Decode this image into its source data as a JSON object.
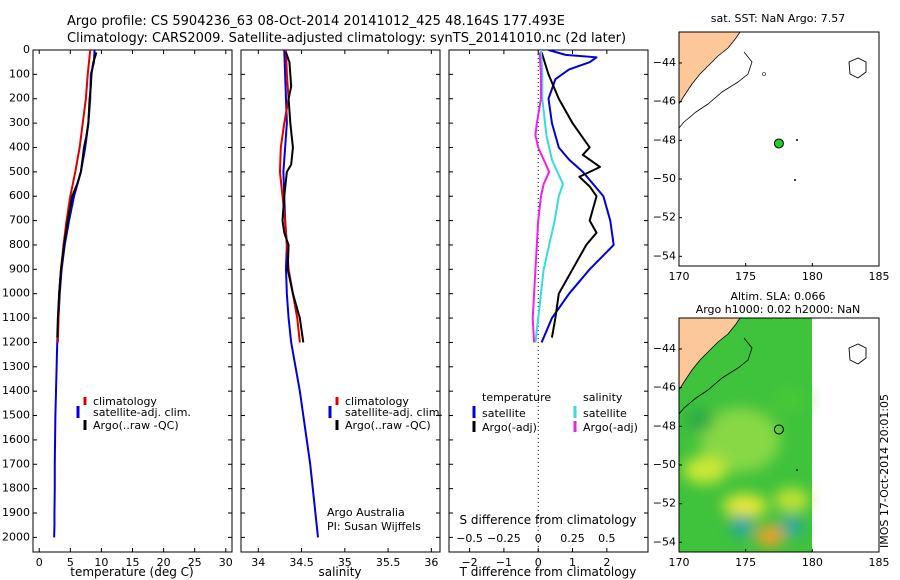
{
  "header": {
    "line1": "Argo profile: CS 5904236_63 08-Oct-2014 20141012_425 48.164S 177.493E",
    "line2": "Climatology: CARS2009. Satellite-adjusted climatology: synTS_20141010.nc (2d later)"
  },
  "credits": {
    "org": "Argo Australia",
    "pi": "PI: Susan Wijffels",
    "imos": "IMOS 17-Oct-2014 20:01:05"
  },
  "colors": {
    "climatology": "#dd0000",
    "satellite": "#0000dd",
    "argo": "#000000",
    "sat_salinity": "#33dddd",
    "argo_salinity": "#ee22ee",
    "land": "#fcc89a",
    "float_marker": "#22cc22"
  },
  "chart_data": [
    {
      "id": "temp",
      "type": "line",
      "xlabel": "temperature (deg C)",
      "ylim": [
        2060,
        0
      ],
      "xlim": [
        -1,
        31
      ],
      "xticks": [
        0,
        5,
        10,
        15,
        20,
        25,
        30
      ],
      "yticks": [
        0,
        100,
        200,
        300,
        400,
        500,
        600,
        700,
        800,
        900,
        1000,
        1100,
        1200,
        1300,
        1400,
        1500,
        1600,
        1700,
        1800,
        1900,
        2000
      ],
      "legend": {
        "position": "lower-center",
        "entries": [
          "climatology",
          "satellite-adj. clim.",
          "Argo(..raw -QC)"
        ]
      },
      "series": [
        {
          "name": "satellite-adj. clim.",
          "color": "satellite",
          "x": [
            8.9,
            8.8,
            8.3,
            8.2,
            7.9,
            7.4,
            6.7,
            5.6,
            4.8,
            4.1,
            3.6,
            3.3,
            3.1,
            2.9,
            2.8,
            2.7,
            2.6,
            2.55,
            2.5,
            2.5,
            2.45,
            2.45,
            2.4
          ],
          "y": [
            0,
            50,
            100,
            200,
            300,
            400,
            500,
            600,
            700,
            800,
            900,
            1000,
            1100,
            1200,
            1300,
            1400,
            1500,
            1600,
            1700,
            1800,
            1900,
            1950,
            2000
          ]
        },
        {
          "name": "climatology",
          "color": "climatology",
          "x": [
            8.2,
            8.0,
            7.8,
            7.5,
            7.0,
            6.5,
            5.8,
            5.0,
            4.4,
            3.9,
            3.5,
            3.2,
            3.0
          ],
          "y": [
            0,
            50,
            100,
            200,
            300,
            400,
            500,
            600,
            700,
            800,
            900,
            1000,
            1200
          ]
        },
        {
          "name": "Argo(..raw -QC)",
          "color": "argo",
          "x": [
            9.2,
            8.7,
            8.4,
            8.3,
            8.1,
            7.9,
            7.6,
            7.2,
            6.7,
            6.1,
            5.3,
            4.6,
            4.0,
            3.5,
            3.2,
            3.0,
            2.9
          ],
          "y": [
            10,
            50,
            100,
            150,
            200,
            300,
            350,
            400,
            500,
            550,
            600,
            700,
            800,
            900,
            1000,
            1100,
            1180
          ]
        }
      ]
    },
    {
      "id": "salt",
      "type": "line",
      "xlabel": "salinity",
      "ylim": [
        2060,
        0
      ],
      "xlim": [
        33.8,
        36.1
      ],
      "xticks": [
        34,
        34.5,
        35,
        35.5,
        36
      ],
      "legend": {
        "position": "lower-center",
        "entries": [
          "climatology",
          "satellite-adj. clim.",
          "Argo(..raw -QC)"
        ]
      },
      "series": [
        {
          "name": "satellite-adj. clim.",
          "color": "satellite",
          "x": [
            34.3,
            34.31,
            34.32,
            34.33,
            34.31,
            34.29,
            34.3,
            34.31,
            34.33,
            34.32,
            34.33,
            34.35,
            34.38,
            34.43,
            34.48,
            34.52,
            34.56,
            34.6,
            34.63,
            34.66,
            34.69
          ],
          "y": [
            0,
            100,
            200,
            300,
            400,
            500,
            600,
            700,
            800,
            900,
            1000,
            1100,
            1200,
            1300,
            1400,
            1500,
            1600,
            1700,
            1800,
            1900,
            2000
          ]
        },
        {
          "name": "climatology",
          "color": "climatology",
          "x": [
            34.32,
            34.33,
            34.35,
            34.3,
            34.26,
            34.25,
            34.28,
            34.31,
            34.33,
            34.35,
            34.4,
            34.45,
            34.48
          ],
          "y": [
            0,
            100,
            200,
            300,
            400,
            500,
            600,
            700,
            800,
            900,
            1000,
            1100,
            1200
          ]
        },
        {
          "name": "Argo(..raw -QC)",
          "color": "argo",
          "x": [
            34.32,
            34.36,
            34.38,
            34.35,
            34.37,
            34.4,
            34.38,
            34.33,
            34.3,
            34.28,
            34.3,
            34.35,
            34.34,
            34.4,
            34.44,
            34.48,
            34.5,
            34.52
          ],
          "y": [
            10,
            50,
            150,
            200,
            300,
            400,
            470,
            500,
            600,
            700,
            750,
            800,
            900,
            1000,
            1050,
            1100,
            1150,
            1200
          ]
        }
      ]
    },
    {
      "id": "diff",
      "type": "line",
      "xlabel": "T difference from climatology",
      "x2label": "S difference from climatology",
      "ylim": [
        2060,
        0
      ],
      "xlim": [
        -2.6,
        3.2
      ],
      "xticks": [
        -2,
        -1,
        0,
        1,
        2
      ],
      "x2ticks": [
        -0.5,
        -0.25,
        0,
        0.25,
        0.5
      ],
      "x2tick_labels": [
        "−0.5",
        "−0.25",
        "0",
        "0.25",
        "0.5"
      ],
      "legend": {
        "position": "center",
        "temperature_title": "temperature",
        "salinity_title": "salinity",
        "entries": [
          "satellite",
          "Argo(-adj)",
          "satellite",
          "Argo(-adj)"
        ]
      },
      "series": [
        {
          "name": "T satellite",
          "color": "satellite",
          "x": [
            0.3,
            0.8,
            1.7,
            1.5,
            0.9,
            0.5,
            0.3,
            0.4,
            0.5,
            0.6,
            0.9,
            1.3,
            1.6,
            1.9,
            2.1,
            2.2,
            1.5,
            0.9,
            0.4,
            0.1
          ],
          "y": [
            0,
            20,
            30,
            50,
            80,
            120,
            200,
            300,
            350,
            400,
            450,
            500,
            550,
            600,
            700,
            800,
            900,
            1000,
            1100,
            1200
          ]
        },
        {
          "name": "T Argo(-adj)",
          "color": "argo",
          "x": [
            0.1,
            0.3,
            0.6,
            1.0,
            1.5,
            1.3,
            1.8,
            1.2,
            1.5,
            1.7,
            1.6,
            1.5,
            1.7,
            1.4,
            1.0,
            0.8,
            0.6,
            0.5,
            0.4
          ],
          "y": [
            10,
            100,
            200,
            300,
            400,
            430,
            480,
            520,
            560,
            600,
            650,
            700,
            750,
            800,
            900,
            950,
            1000,
            1100,
            1180
          ]
        },
        {
          "name": "S satellite",
          "color": "sat_salinity",
          "x": [
            0.02,
            0.03,
            0.03,
            0.05,
            0.06,
            0.08,
            0.1,
            0.14,
            0.18,
            0.15,
            0.12,
            0.08,
            0.04,
            0.02,
            0.0,
            -0.01,
            -0.02
          ],
          "y": [
            0,
            100,
            200,
            300,
            350,
            400,
            450,
            500,
            550,
            600,
            700,
            800,
            900,
            1000,
            1100,
            1150,
            1200
          ]
        },
        {
          "name": "S Argo(-adj)",
          "color": "argo_salinity",
          "x": [
            0.01,
            0.02,
            0.02,
            -0.01,
            -0.02,
            0.0,
            0.04,
            0.08,
            0.04,
            0.02,
            0.0,
            -0.01,
            -0.02,
            -0.03,
            -0.04,
            -0.03
          ],
          "y": [
            10,
            100,
            200,
            300,
            350,
            400,
            450,
            500,
            550,
            600,
            700,
            800,
            900,
            1000,
            1100,
            1200
          ]
        }
      ]
    },
    {
      "id": "map_sst",
      "type": "scatter",
      "title": "sat. SST: NaN Argo: 7.57",
      "xlim": [
        170,
        185
      ],
      "ylim": [
        -54.5,
        -42.4
      ],
      "xticks": [
        170,
        175,
        180,
        185
      ],
      "yticks": [
        -44,
        -46,
        -48,
        -50,
        -52,
        -54
      ],
      "float_position": {
        "lon": 177.493,
        "lat": -48.164
      }
    },
    {
      "id": "map_sla",
      "type": "heatmap",
      "title": "Altim. SLA: 0.066",
      "subtitle": "Argo h1000: 0.02 h2000: NaN",
      "xlim": [
        170,
        185
      ],
      "ylim": [
        -54.5,
        -42.4
      ],
      "xticks": [
        170,
        175,
        180,
        185
      ],
      "yticks": [
        -44,
        -46,
        -48,
        -50,
        -52,
        -54
      ],
      "float_position": {
        "lon": 177.493,
        "lat": -48.164
      }
    }
  ]
}
